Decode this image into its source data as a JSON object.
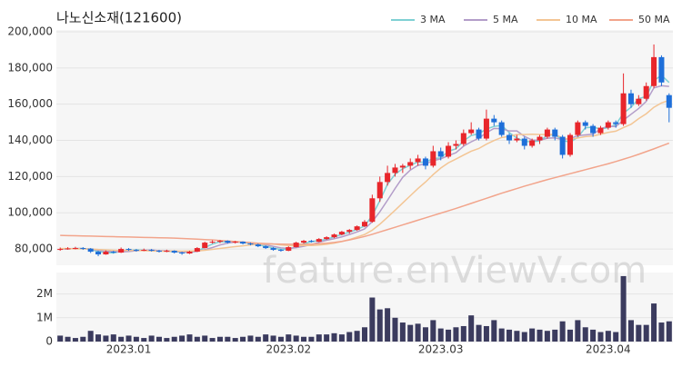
{
  "watermark": "feature.enViewV.com",
  "chart_data": [
    {
      "type": "candlestick",
      "title": "나노신소재(121600)",
      "up_color": "#e8262b",
      "down_color": "#1e6fd9",
      "grid": true,
      "legend": "top-right",
      "ylim": [
        71000,
        201000
      ],
      "yticks": [
        {
          "value": 80000,
          "label": "80,000"
        },
        {
          "value": 100000,
          "label": "100,000"
        },
        {
          "value": 120000,
          "label": "120,000"
        },
        {
          "value": 140000,
          "label": "140,000"
        },
        {
          "value": 160000,
          "label": "160,000"
        },
        {
          "value": 180000,
          "label": "180,000"
        },
        {
          "value": 200000,
          "label": "200,000"
        }
      ],
      "open": [
        79500,
        80000,
        80300,
        80500,
        80200,
        78500,
        77000,
        78500,
        78000,
        80000,
        79500,
        79000,
        79500,
        79000,
        78500,
        79000,
        78000,
        77500,
        78500,
        80500,
        83500,
        84000,
        84500,
        83500,
        84000,
        83000,
        82500,
        81500,
        80500,
        79500,
        79000,
        81000,
        83500,
        84500,
        84000,
        85500,
        86500,
        88000,
        89500,
        90500,
        92500,
        95000,
        108000,
        117000,
        122000,
        125000,
        126000,
        128000,
        130000,
        126000,
        134000,
        131000,
        137000,
        138000,
        144000,
        146000,
        141000,
        152000,
        150000,
        143000,
        140000,
        141000,
        137000,
        140000,
        142000,
        146000,
        142000,
        132000,
        143000,
        150000,
        148000,
        144000,
        147000,
        150000,
        149000,
        166000,
        160000,
        163000,
        170000,
        186000,
        165000
      ],
      "high": [
        80800,
        81000,
        81200,
        81000,
        80500,
        79000,
        79200,
        79000,
        80800,
        80500,
        80000,
        80200,
        80000,
        79500,
        79600,
        79300,
        78500,
        79000,
        81000,
        84000,
        84800,
        85000,
        84800,
        84500,
        84200,
        83500,
        83000,
        82000,
        81000,
        80000,
        81500,
        84000,
        85000,
        85000,
        86000,
        87000,
        88500,
        90000,
        91000,
        93000,
        96000,
        110000,
        120000,
        126000,
        127000,
        127000,
        130000,
        132000,
        131000,
        137000,
        136000,
        139000,
        140000,
        146000,
        150000,
        147000,
        157000,
        154000,
        151000,
        144000,
        143000,
        142000,
        141000,
        143000,
        147000,
        147000,
        143000,
        144000,
        151000,
        151000,
        149000,
        148000,
        151000,
        151000,
        177000,
        168000,
        165000,
        172000,
        193000,
        187000,
        166000
      ],
      "low": [
        79000,
        79600,
        79800,
        79500,
        77800,
        76000,
        76800,
        77500,
        77800,
        79000,
        78500,
        78800,
        78600,
        78000,
        78200,
        77500,
        76800,
        77200,
        78300,
        80300,
        83000,
        83200,
        83000,
        83000,
        82500,
        82000,
        81000,
        80000,
        79000,
        78500,
        78800,
        80800,
        83000,
        83500,
        83800,
        85000,
        86000,
        87500,
        88500,
        90000,
        92000,
        94500,
        106000,
        115000,
        120000,
        122000,
        124000,
        126000,
        124000,
        125000,
        129000,
        130000,
        135000,
        137000,
        143000,
        140000,
        140000,
        148000,
        142000,
        138000,
        139000,
        135000,
        136000,
        138000,
        141000,
        140000,
        130000,
        131000,
        142000,
        146000,
        142000,
        143000,
        146000,
        147000,
        148000,
        158000,
        159000,
        162000,
        169000,
        170000,
        150000
      ],
      "close": [
        80000,
        80300,
        80500,
        80200,
        78500,
        77000,
        78500,
        78000,
        80000,
        79500,
        79000,
        79500,
        79000,
        78500,
        79000,
        78000,
        77500,
        78500,
        80500,
        83500,
        84000,
        84500,
        83500,
        84000,
        83000,
        82500,
        81500,
        80500,
        79500,
        79000,
        81000,
        83500,
        84500,
        84000,
        85500,
        86500,
        88000,
        89500,
        90500,
        92500,
        95000,
        108000,
        117000,
        122000,
        125000,
        126000,
        128000,
        130000,
        126000,
        134000,
        131000,
        137000,
        138000,
        144000,
        146000,
        141000,
        152000,
        150000,
        143000,
        140000,
        141000,
        137000,
        140000,
        142000,
        146000,
        142000,
        132000,
        143000,
        150000,
        148000,
        144000,
        147000,
        150000,
        149000,
        166000,
        160000,
        163000,
        170000,
        186000,
        172000,
        158000
      ],
      "series": [
        {
          "name": "3 MA",
          "color": "#7fd0d4",
          "values": [
            80000,
            80100,
            80300,
            80300,
            79700,
            78600,
            78000,
            77800,
            78800,
            79200,
            79500,
            79300,
            79200,
            79000,
            78800,
            78500,
            78200,
            78000,
            78800,
            80800,
            82700,
            84000,
            84000,
            84000,
            83500,
            83200,
            82300,
            81500,
            80500,
            79700,
            79800,
            81200,
            83000,
            84000,
            84700,
            85300,
            86700,
            88000,
            89300,
            90800,
            92700,
            98500,
            106700,
            115700,
            121300,
            124300,
            126300,
            128000,
            128000,
            130000,
            130300,
            134000,
            135300,
            139700,
            142700,
            143700,
            146300,
            147700,
            148300,
            144300,
            141300,
            139300,
            139300,
            139700,
            142700,
            143300,
            140000,
            139000,
            141700,
            147000,
            147300,
            146300,
            147000,
            148700,
            155000,
            158300,
            163000,
            164300,
            173000,
            176000,
            172000
          ]
        },
        {
          "name": "5 MA",
          "color": "#b39dc9",
          "values": [
            80000,
            80100,
            80200,
            80200,
            79900,
            79300,
            78900,
            78400,
            78400,
            78600,
            79000,
            79200,
            79400,
            79100,
            79000,
            78800,
            78400,
            78300,
            78700,
            79600,
            80800,
            82200,
            83200,
            83900,
            83800,
            83500,
            82900,
            82300,
            81400,
            80600,
            80300,
            80700,
            81500,
            82400,
            83700,
            84800,
            85700,
            86700,
            88000,
            89400,
            91100,
            95100,
            100600,
            106900,
            113400,
            119600,
            123600,
            126200,
            127000,
            128800,
            129800,
            131600,
            133200,
            136800,
            139200,
            141200,
            144200,
            146600,
            146400,
            145200,
            145200,
            142200,
            140200,
            140000,
            141200,
            141400,
            140400,
            141000,
            142600,
            143000,
            143400,
            146400,
            147800,
            147600,
            151200,
            154400,
            157600,
            161600,
            169000,
            170200,
            169800
          ]
        },
        {
          "name": "10 MA",
          "color": "#f3c594",
          "values": [
            80200,
            80200,
            80100,
            80100,
            80000,
            79700,
            79500,
            79300,
            79100,
            79300,
            79200,
            79100,
            78900,
            78800,
            78800,
            78900,
            78800,
            78900,
            78900,
            79300,
            79800,
            80300,
            80800,
            81300,
            81700,
            82200,
            82600,
            82800,
            82700,
            82200,
            81900,
            81800,
            81900,
            81900,
            82200,
            82600,
            83200,
            84100,
            85200,
            86600,
            88000,
            90400,
            93700,
            97500,
            101400,
            105400,
            109400,
            113400,
            117000,
            121100,
            124700,
            127600,
            129700,
            131900,
            134000,
            135500,
            137900,
            139900,
            141600,
            142200,
            143200,
            143200,
            143400,
            143200,
            143200,
            143300,
            141300,
            140600,
            141300,
            142100,
            142400,
            143400,
            144400,
            145100,
            147100,
            148900,
            152000,
            154700,
            158300,
            160700,
            162100
          ]
        },
        {
          "name": "50 MA",
          "color": "#f2a48b",
          "values": [
            87500,
            87400,
            87300,
            87200,
            87100,
            87000,
            86900,
            86800,
            86700,
            86600,
            86500,
            86400,
            86300,
            86200,
            86100,
            86000,
            85800,
            85600,
            85400,
            85200,
            85000,
            84700,
            84400,
            84100,
            83800,
            83500,
            83200,
            83000,
            82800,
            82700,
            82600,
            82600,
            82600,
            82700,
            82900,
            83200,
            83600,
            84200,
            85000,
            85900,
            86900,
            88100,
            89400,
            90700,
            92000,
            93300,
            94600,
            95900,
            97200,
            98500,
            99800,
            101100,
            102400,
            103800,
            105200,
            106600,
            108000,
            109400,
            110800,
            112100,
            113400,
            114700,
            115900,
            117100,
            118300,
            119400,
            120500,
            121600,
            122700,
            123800,
            124900,
            126000,
            127100,
            128300,
            129600,
            130900,
            132300,
            133800,
            135300,
            136900,
            138500
          ]
        }
      ]
    },
    {
      "type": "bar",
      "color": "#3b3b5e",
      "grid": true,
      "ylim": [
        0,
        2900000
      ],
      "yticks": [
        0,
        {
          "value": 1000000,
          "label": "1M"
        },
        {
          "value": 2000000,
          "label": "2M"
        }
      ],
      "categories": [
        null,
        null,
        null,
        null,
        null,
        null,
        null,
        null,
        null,
        "2023.01",
        null,
        null,
        null,
        null,
        null,
        null,
        null,
        null,
        null,
        null,
        null,
        null,
        null,
        null,
        null,
        null,
        null,
        null,
        null,
        null,
        "2023.02",
        null,
        null,
        null,
        null,
        null,
        null,
        null,
        null,
        null,
        null,
        null,
        null,
        null,
        null,
        null,
        null,
        null,
        null,
        null,
        "2023.03",
        null,
        null,
        null,
        null,
        null,
        null,
        null,
        null,
        null,
        null,
        null,
        null,
        null,
        null,
        null,
        null,
        null,
        null,
        null,
        null,
        null,
        "2023.04",
        null,
        null,
        null,
        null,
        null,
        null,
        null,
        null
      ],
      "values": [
        250000,
        200000,
        150000,
        200000,
        450000,
        300000,
        250000,
        300000,
        200000,
        250000,
        200000,
        150000,
        250000,
        200000,
        150000,
        200000,
        250000,
        300000,
        200000,
        250000,
        150000,
        200000,
        200000,
        150000,
        200000,
        250000,
        200000,
        300000,
        250000,
        200000,
        300000,
        250000,
        200000,
        200000,
        300000,
        300000,
        350000,
        300000,
        400000,
        450000,
        600000,
        1850000,
        1350000,
        1400000,
        1000000,
        800000,
        700000,
        750000,
        600000,
        900000,
        550000,
        500000,
        600000,
        650000,
        1100000,
        700000,
        650000,
        900000,
        550000,
        500000,
        450000,
        400000,
        550000,
        500000,
        450000,
        500000,
        850000,
        500000,
        900000,
        600000,
        500000,
        400000,
        450000,
        400000,
        2750000,
        900000,
        700000,
        700000,
        1600000,
        800000,
        850000
      ]
    }
  ]
}
